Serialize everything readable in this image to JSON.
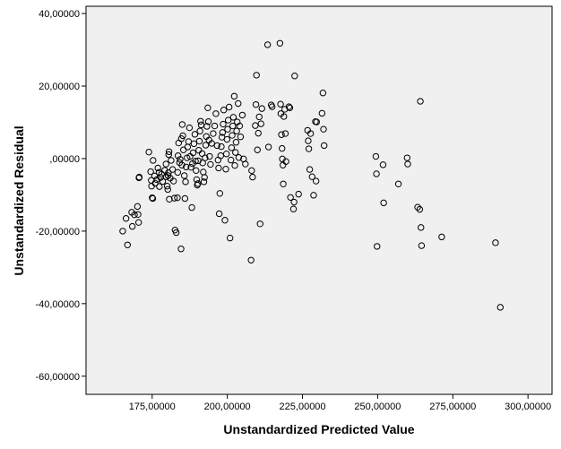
{
  "chart_data": {
    "type": "scatter",
    "title": "",
    "xlabel": "Unstandardized Predicted Value",
    "ylabel": "Unstandardized Residual",
    "xlim": [
      153000,
      308000
    ],
    "ylim": [
      -65000,
      42000
    ],
    "x_ticks": [
      175000,
      200000,
      225000,
      250000,
      275000,
      300000
    ],
    "x_tick_labels": [
      "175,00000",
      "200,00000",
      "225,00000",
      "250,00000",
      "275,00000",
      "300,00000"
    ],
    "y_ticks": [
      40000,
      20000,
      0,
      -20000,
      -40000,
      -60000
    ],
    "y_tick_labels": [
      "40,00000",
      "20,00000",
      ",00000",
      "-20,00000",
      "-40,00000",
      "-60,00000"
    ],
    "grid": false,
    "colors": {
      "plot_bg": "#f0f0f0",
      "marker": "#000000",
      "axis": "#000000"
    },
    "points": [
      {
        "x": 165200,
        "y": -20000
      },
      {
        "x": 166300,
        "y": -16500
      },
      {
        "x": 166800,
        "y": -23800
      },
      {
        "x": 168200,
        "y": -14800
      },
      {
        "x": 168400,
        "y": -18700
      },
      {
        "x": 169100,
        "y": -15500
      },
      {
        "x": 170100,
        "y": -13200
      },
      {
        "x": 170300,
        "y": -15400
      },
      {
        "x": 170500,
        "y": -17600
      },
      {
        "x": 170600,
        "y": -5300
      },
      {
        "x": 170700,
        "y": -5100
      },
      {
        "x": 173900,
        "y": 1800
      },
      {
        "x": 174500,
        "y": -3600
      },
      {
        "x": 174700,
        "y": -6000
      },
      {
        "x": 174800,
        "y": -7600
      },
      {
        "x": 175000,
        "y": -10800
      },
      {
        "x": 175200,
        "y": -11000
      },
      {
        "x": 175300,
        "y": -500
      },
      {
        "x": 175800,
        "y": -4800
      },
      {
        "x": 176000,
        "y": -6800
      },
      {
        "x": 176500,
        "y": -5800
      },
      {
        "x": 176900,
        "y": -2600
      },
      {
        "x": 177300,
        "y": -3800
      },
      {
        "x": 177400,
        "y": -7700
      },
      {
        "x": 177800,
        "y": -5200
      },
      {
        "x": 178100,
        "y": -4300
      },
      {
        "x": 178500,
        "y": -6300
      },
      {
        "x": 179200,
        "y": -3200
      },
      {
        "x": 179600,
        "y": -1500
      },
      {
        "x": 179700,
        "y": -5000
      },
      {
        "x": 180000,
        "y": -7600
      },
      {
        "x": 180200,
        "y": -8500
      },
      {
        "x": 180300,
        "y": -4700
      },
      {
        "x": 180400,
        "y": -3900
      },
      {
        "x": 180500,
        "y": 1100
      },
      {
        "x": 180600,
        "y": 1900
      },
      {
        "x": 180700,
        "y": -11200
      },
      {
        "x": 181000,
        "y": -5400
      },
      {
        "x": 181300,
        "y": -500
      },
      {
        "x": 181800,
        "y": -3000
      },
      {
        "x": 182100,
        "y": -6200
      },
      {
        "x": 182400,
        "y": -10900
      },
      {
        "x": 182600,
        "y": -19700
      },
      {
        "x": 183000,
        "y": -20400
      },
      {
        "x": 183400,
        "y": -10800
      },
      {
        "x": 183500,
        "y": -3800
      },
      {
        "x": 183600,
        "y": 800
      },
      {
        "x": 183800,
        "y": 4300
      },
      {
        "x": 184100,
        "y": -1100
      },
      {
        "x": 184300,
        "y": -200
      },
      {
        "x": 184600,
        "y": -24900
      },
      {
        "x": 184700,
        "y": 5500
      },
      {
        "x": 184900,
        "y": -1800
      },
      {
        "x": 185000,
        "y": 9400
      },
      {
        "x": 185200,
        "y": 6300
      },
      {
        "x": 185400,
        "y": 2400
      },
      {
        "x": 185700,
        "y": -4700
      },
      {
        "x": 185900,
        "y": -11000
      },
      {
        "x": 186100,
        "y": -6400
      },
      {
        "x": 186300,
        "y": -2300
      },
      {
        "x": 186600,
        "y": 200
      },
      {
        "x": 186800,
        "y": 3200
      },
      {
        "x": 187100,
        "y": 4700
      },
      {
        "x": 187400,
        "y": 8500
      },
      {
        "x": 187600,
        "y": 600
      },
      {
        "x": 187900,
        "y": -2400
      },
      {
        "x": 188200,
        "y": -13500
      },
      {
        "x": 188400,
        "y": -1400
      },
      {
        "x": 188600,
        "y": 1600
      },
      {
        "x": 188900,
        "y": 4100
      },
      {
        "x": 189200,
        "y": 6700
      },
      {
        "x": 189400,
        "y": -700
      },
      {
        "x": 189600,
        "y": -3300
      },
      {
        "x": 189800,
        "y": -5800
      },
      {
        "x": 190000,
        "y": -7300
      },
      {
        "x": 190200,
        "y": -6900
      },
      {
        "x": 190300,
        "y": -600
      },
      {
        "x": 190500,
        "y": 2300
      },
      {
        "x": 190700,
        "y": 4800
      },
      {
        "x": 190900,
        "y": 7600
      },
      {
        "x": 191100,
        "y": 10300
      },
      {
        "x": 191300,
        "y": 9300
      },
      {
        "x": 191600,
        "y": 1400
      },
      {
        "x": 191800,
        "y": -1200
      },
      {
        "x": 192000,
        "y": -3700
      },
      {
        "x": 192200,
        "y": -6400
      },
      {
        "x": 192400,
        "y": -5200
      },
      {
        "x": 192600,
        "y": 200
      },
      {
        "x": 192800,
        "y": 3700
      },
      {
        "x": 193000,
        "y": 6100
      },
      {
        "x": 193200,
        "y": 8900
      },
      {
        "x": 193500,
        "y": 14000
      },
      {
        "x": 193700,
        "y": 10200
      },
      {
        "x": 193900,
        "y": 5100
      },
      {
        "x": 194100,
        "y": 600
      },
      {
        "x": 194400,
        "y": -1600
      },
      {
        "x": 194800,
        "y": 4200
      },
      {
        "x": 195300,
        "y": 6900
      },
      {
        "x": 195800,
        "y": 9000
      },
      {
        "x": 196200,
        "y": 12400
      },
      {
        "x": 196600,
        "y": 3600
      },
      {
        "x": 196900,
        "y": -400
      },
      {
        "x": 197100,
        "y": -2600
      },
      {
        "x": 197300,
        "y": -15200
      },
      {
        "x": 197500,
        "y": -9600
      },
      {
        "x": 197800,
        "y": 800
      },
      {
        "x": 198000,
        "y": 3300
      },
      {
        "x": 198200,
        "y": 5900
      },
      {
        "x": 198400,
        "y": 7200
      },
      {
        "x": 198600,
        "y": 9500
      },
      {
        "x": 198800,
        "y": 13400
      },
      {
        "x": 199200,
        "y": -17000
      },
      {
        "x": 199500,
        "y": -2900
      },
      {
        "x": 199700,
        "y": 1300
      },
      {
        "x": 199900,
        "y": 5300
      },
      {
        "x": 200100,
        "y": 8100
      },
      {
        "x": 200300,
        "y": 10600
      },
      {
        "x": 200600,
        "y": 14200
      },
      {
        "x": 200900,
        "y": -21900
      },
      {
        "x": 201200,
        "y": -400
      },
      {
        "x": 201400,
        "y": 3000
      },
      {
        "x": 201600,
        "y": 6400
      },
      {
        "x": 201800,
        "y": 9000
      },
      {
        "x": 202000,
        "y": 11400
      },
      {
        "x": 202300,
        "y": 17200
      },
      {
        "x": 202500,
        "y": -1900
      },
      {
        "x": 202700,
        "y": 1700
      },
      {
        "x": 202900,
        "y": 4500
      },
      {
        "x": 203100,
        "y": 7600
      },
      {
        "x": 203300,
        "y": 10100
      },
      {
        "x": 203600,
        "y": 15200
      },
      {
        "x": 203800,
        "y": 300
      },
      {
        "x": 204100,
        "y": 9000
      },
      {
        "x": 204400,
        "y": 6000
      },
      {
        "x": 205000,
        "y": 12000
      },
      {
        "x": 205400,
        "y": -100
      },
      {
        "x": 206000,
        "y": -1500
      },
      {
        "x": 207900,
        "y": -28000
      },
      {
        "x": 208100,
        "y": -3300
      },
      {
        "x": 208400,
        "y": -5100
      },
      {
        "x": 209300,
        "y": 9100
      },
      {
        "x": 209500,
        "y": 14900
      },
      {
        "x": 209700,
        "y": 23000
      },
      {
        "x": 210000,
        "y": 2400
      },
      {
        "x": 210300,
        "y": 7000
      },
      {
        "x": 210600,
        "y": 11500
      },
      {
        "x": 210900,
        "y": -18000
      },
      {
        "x": 211200,
        "y": 9600
      },
      {
        "x": 211500,
        "y": 13800
      },
      {
        "x": 213400,
        "y": 31400
      },
      {
        "x": 213700,
        "y": 3200
      },
      {
        "x": 214600,
        "y": 14800
      },
      {
        "x": 214900,
        "y": 14300
      },
      {
        "x": 217500,
        "y": 31800
      },
      {
        "x": 217700,
        "y": 15000
      },
      {
        "x": 217800,
        "y": 12400
      },
      {
        "x": 218000,
        "y": 6600
      },
      {
        "x": 218200,
        "y": 2800
      },
      {
        "x": 218300,
        "y": -100
      },
      {
        "x": 218500,
        "y": -1800
      },
      {
        "x": 218600,
        "y": -7000
      },
      {
        "x": 218800,
        "y": 11600
      },
      {
        "x": 219100,
        "y": 13600
      },
      {
        "x": 219300,
        "y": 6900
      },
      {
        "x": 219500,
        "y": -800
      },
      {
        "x": 220500,
        "y": 14300
      },
      {
        "x": 220800,
        "y": 14000
      },
      {
        "x": 221000,
        "y": -10700
      },
      {
        "x": 222000,
        "y": -13900
      },
      {
        "x": 222200,
        "y": -12000
      },
      {
        "x": 222400,
        "y": 22800
      },
      {
        "x": 223700,
        "y": -9800
      },
      {
        "x": 226700,
        "y": 7800
      },
      {
        "x": 226900,
        "y": 4900
      },
      {
        "x": 227100,
        "y": 2700
      },
      {
        "x": 227400,
        "y": -3000
      },
      {
        "x": 227700,
        "y": 6900
      },
      {
        "x": 228200,
        "y": -5000
      },
      {
        "x": 228700,
        "y": -10100
      },
      {
        "x": 229300,
        "y": 10200
      },
      {
        "x": 229500,
        "y": -6200
      },
      {
        "x": 229700,
        "y": 10100
      },
      {
        "x": 231500,
        "y": 12500
      },
      {
        "x": 231800,
        "y": 18100
      },
      {
        "x": 232000,
        "y": 8100
      },
      {
        "x": 232200,
        "y": 3600
      },
      {
        "x": 249400,
        "y": 600
      },
      {
        "x": 249600,
        "y": -4200
      },
      {
        "x": 249800,
        "y": -24200
      },
      {
        "x": 251800,
        "y": -1700
      },
      {
        "x": 252000,
        "y": -12200
      },
      {
        "x": 256900,
        "y": -7000
      },
      {
        "x": 259800,
        "y": 200
      },
      {
        "x": 260000,
        "y": -1500
      },
      {
        "x": 263300,
        "y": -13400
      },
      {
        "x": 264000,
        "y": -14000
      },
      {
        "x": 264200,
        "y": 15800
      },
      {
        "x": 264400,
        "y": -19000
      },
      {
        "x": 264600,
        "y": -24000
      },
      {
        "x": 271300,
        "y": -21600
      },
      {
        "x": 289200,
        "y": -23200
      },
      {
        "x": 290800,
        "y": -41000
      }
    ]
  }
}
